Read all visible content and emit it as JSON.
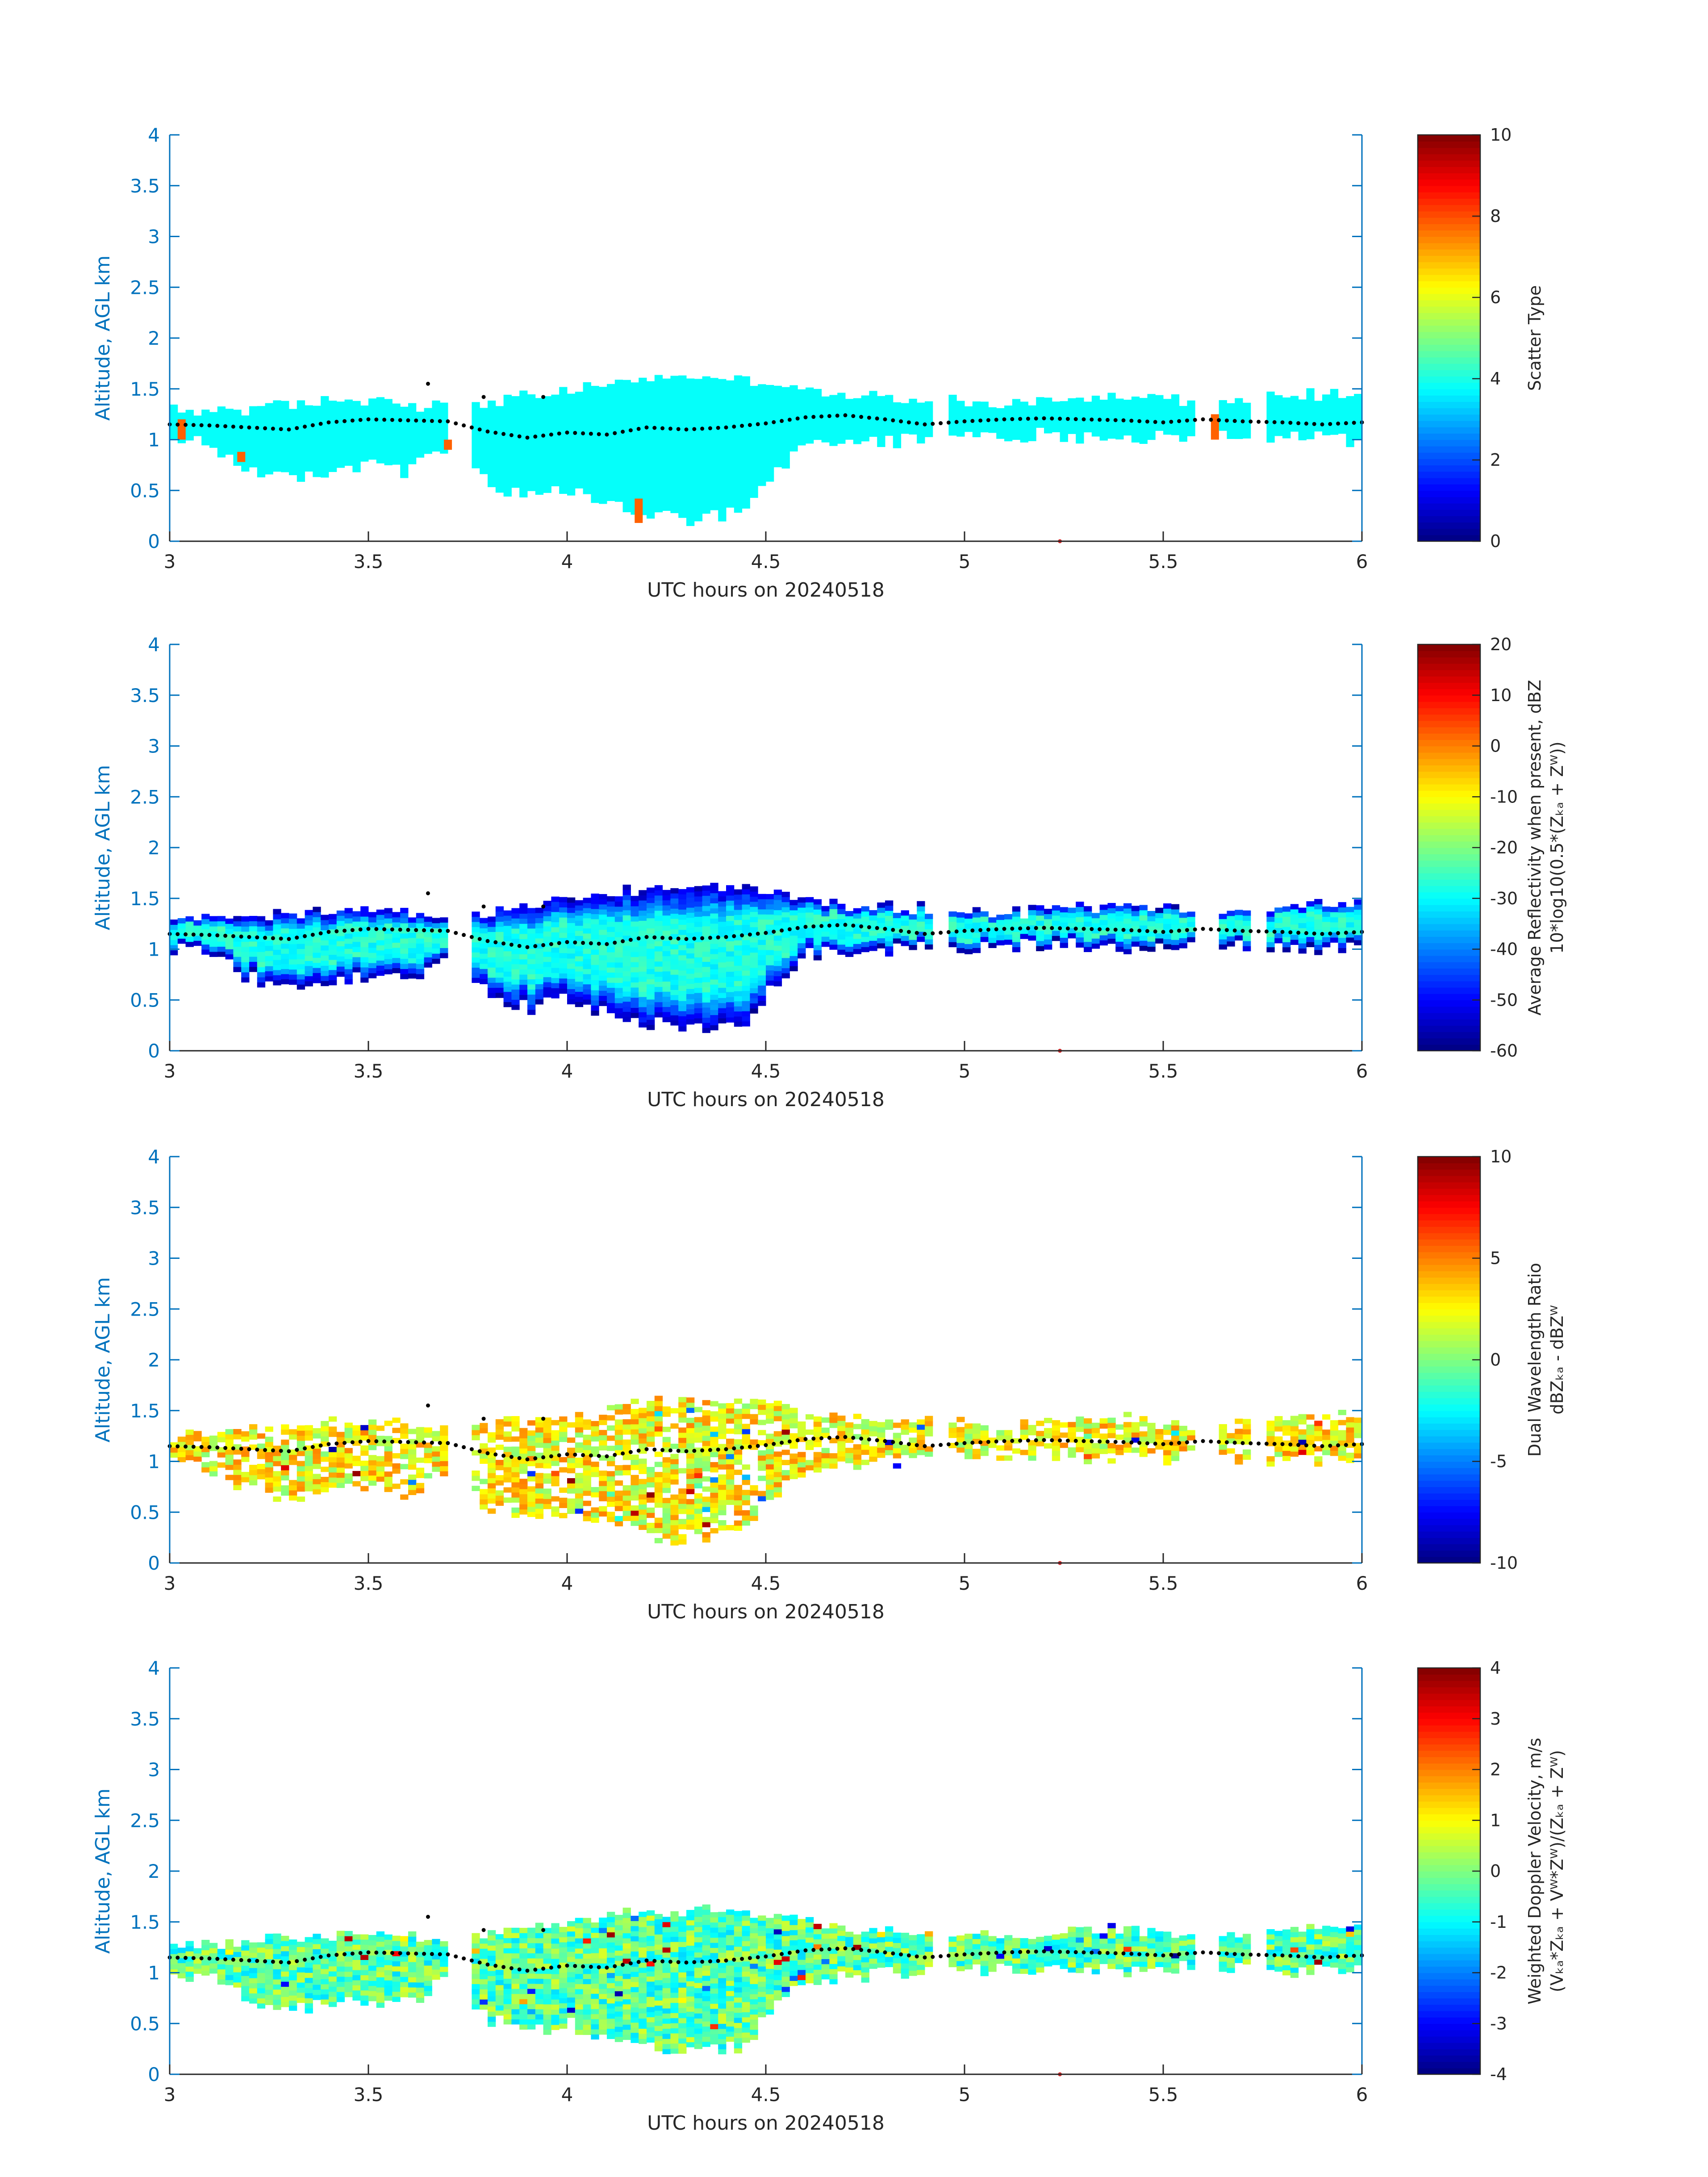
{
  "chart_data": [
    {
      "type": "heatmap",
      "xlabel": "UTC hours on 20240518",
      "ylabel": "Altitude, AGL km",
      "xlim": [
        3,
        6
      ],
      "ylim": [
        0,
        4
      ],
      "xticks": [
        "3",
        "3.5",
        "4",
        "4.5",
        "5",
        "5.5",
        "6"
      ],
      "yticks": [
        "0",
        "0.5",
        "1",
        "1.5",
        "2",
        "2.5",
        "3",
        "3.5",
        "4"
      ],
      "colorbar": {
        "label": [
          "Scatter Type"
        ],
        "clim": [
          0,
          10
        ],
        "ticks": [
          "0",
          "2",
          "4",
          "6",
          "8",
          "10"
        ]
      },
      "field": "scatter_type",
      "dominant_value": 3.8,
      "outlier_value": 7.8
    },
    {
      "type": "heatmap",
      "xlabel": "UTC hours on 20240518",
      "ylabel": "Altitude, AGL km",
      "xlim": [
        3,
        6
      ],
      "ylim": [
        0,
        4
      ],
      "xticks": [
        "3",
        "3.5",
        "4",
        "4.5",
        "5",
        "5.5",
        "6"
      ],
      "yticks": [
        "0",
        "0.5",
        "1",
        "1.5",
        "2",
        "2.5",
        "3",
        "3.5",
        "4"
      ],
      "colorbar": {
        "label": [
          "Average Reflectivity when present, dBZ",
          "10*log10(0.5*(Zₖₐ + Zᵂ))"
        ],
        "clim": [
          -60,
          20
        ],
        "ticks": [
          "-60",
          "-50",
          "-40",
          "-30",
          "-20",
          "-10",
          "0",
          "10",
          "20"
        ]
      },
      "field": "reflectivity",
      "center_value": -28,
      "edge_value": -55
    },
    {
      "type": "heatmap",
      "xlabel": "UTC hours on 20240518",
      "ylabel": "Altitude, AGL km",
      "xlim": [
        3,
        6
      ],
      "ylim": [
        0,
        4
      ],
      "xticks": [
        "3",
        "3.5",
        "4",
        "4.5",
        "5",
        "5.5",
        "6"
      ],
      "yticks": [
        "0",
        "0.5",
        "1",
        "1.5",
        "2",
        "2.5",
        "3",
        "3.5",
        "4"
      ],
      "colorbar": {
        "label": [
          "Dual Wavelength Ratio",
          "dBZₖₐ - dBZᵂ"
        ],
        "clim": [
          -10,
          10
        ],
        "ticks": [
          "-10",
          "-5",
          "0",
          "5",
          "10"
        ]
      },
      "field": "dwr",
      "center_value": 2.5,
      "spread": 2.5
    },
    {
      "type": "heatmap",
      "xlabel": "UTC hours on 20240518",
      "ylabel": "Altitude, AGL km",
      "xlim": [
        3,
        6
      ],
      "ylim": [
        0,
        4
      ],
      "xticks": [
        "3",
        "3.5",
        "4",
        "4.5",
        "5",
        "5.5",
        "6"
      ],
      "yticks": [
        "0",
        "0.5",
        "1",
        "1.5",
        "2",
        "2.5",
        "3",
        "3.5",
        "4"
      ],
      "colorbar": {
        "label": [
          "Weighted Doppler Velocity, m/s",
          "(Vₖₐ*Zₖₐ + Vᵂ*Zᵂ)/(Zₖₐ + Zᵂ)"
        ],
        "clim": [
          -4,
          4
        ],
        "ticks": [
          "-4",
          "-3",
          "-2",
          "-1",
          "0",
          "1",
          "2",
          "3",
          "4"
        ]
      },
      "field": "velocity",
      "center_value": -0.3,
      "spread": 1.0
    }
  ],
  "shared": {
    "cloud_base_km": [
      [
        3.0,
        1.15
      ],
      [
        3.1,
        1.14
      ],
      [
        3.2,
        1.12
      ],
      [
        3.3,
        1.1
      ],
      [
        3.4,
        1.17
      ],
      [
        3.5,
        1.2
      ],
      [
        3.6,
        1.19
      ],
      [
        3.7,
        1.18
      ],
      [
        3.8,
        1.08
      ],
      [
        3.9,
        1.02
      ],
      [
        4.0,
        1.07
      ],
      [
        4.1,
        1.05
      ],
      [
        4.2,
        1.12
      ],
      [
        4.3,
        1.1
      ],
      [
        4.4,
        1.12
      ],
      [
        4.5,
        1.16
      ],
      [
        4.6,
        1.22
      ],
      [
        4.7,
        1.24
      ],
      [
        4.8,
        1.2
      ],
      [
        4.9,
        1.15
      ],
      [
        5.0,
        1.18
      ],
      [
        5.1,
        1.2
      ],
      [
        5.2,
        1.21
      ],
      [
        5.3,
        1.2
      ],
      [
        5.4,
        1.19
      ],
      [
        5.5,
        1.17
      ],
      [
        5.6,
        1.2
      ],
      [
        5.7,
        1.18
      ],
      [
        5.8,
        1.17
      ],
      [
        5.9,
        1.15
      ],
      [
        6.0,
        1.17
      ]
    ],
    "cloud_segments_hours": [
      [
        3.0,
        3.7
      ],
      [
        3.76,
        4.92
      ],
      [
        4.96,
        5.57
      ],
      [
        5.63,
        5.72
      ],
      [
        5.75,
        6.0
      ]
    ],
    "cloud_top_km": [
      [
        3.0,
        1.25
      ],
      [
        3.2,
        1.28
      ],
      [
        3.4,
        1.35
      ],
      [
        3.55,
        1.38
      ],
      [
        3.65,
        1.3
      ],
      [
        3.8,
        1.35
      ],
      [
        4.0,
        1.45
      ],
      [
        4.15,
        1.55
      ],
      [
        4.3,
        1.6
      ],
      [
        4.45,
        1.58
      ],
      [
        4.55,
        1.5
      ],
      [
        4.7,
        1.4
      ],
      [
        4.9,
        1.38
      ],
      [
        5.1,
        1.32
      ],
      [
        5.3,
        1.4
      ],
      [
        5.5,
        1.4
      ],
      [
        5.6,
        1.3
      ],
      [
        5.8,
        1.4
      ],
      [
        6.0,
        1.45
      ]
    ],
    "cloud_bottom_km": [
      [
        3.0,
        1.0
      ],
      [
        3.1,
        0.95
      ],
      [
        3.2,
        0.72
      ],
      [
        3.3,
        0.6
      ],
      [
        3.4,
        0.7
      ],
      [
        3.5,
        0.75
      ],
      [
        3.6,
        0.68
      ],
      [
        3.7,
        0.95
      ],
      [
        3.8,
        0.55
      ],
      [
        3.9,
        0.42
      ],
      [
        4.0,
        0.5
      ],
      [
        4.1,
        0.38
      ],
      [
        4.2,
        0.28
      ],
      [
        4.3,
        0.2
      ],
      [
        4.4,
        0.25
      ],
      [
        4.45,
        0.3
      ],
      [
        4.5,
        0.55
      ],
      [
        4.6,
        0.95
      ],
      [
        4.8,
        0.98
      ],
      [
        4.9,
        1.02
      ],
      [
        5.0,
        1.02
      ],
      [
        5.2,
        1.05
      ],
      [
        5.4,
        1.02
      ],
      [
        5.6,
        1.05
      ],
      [
        5.8,
        1.02
      ],
      [
        6.0,
        1.0
      ]
    ],
    "sparse_points": [
      [
        3.65,
        1.55
      ],
      [
        3.79,
        1.42
      ],
      [
        3.94,
        1.42
      ],
      [
        5.24,
        0.0
      ]
    ]
  }
}
